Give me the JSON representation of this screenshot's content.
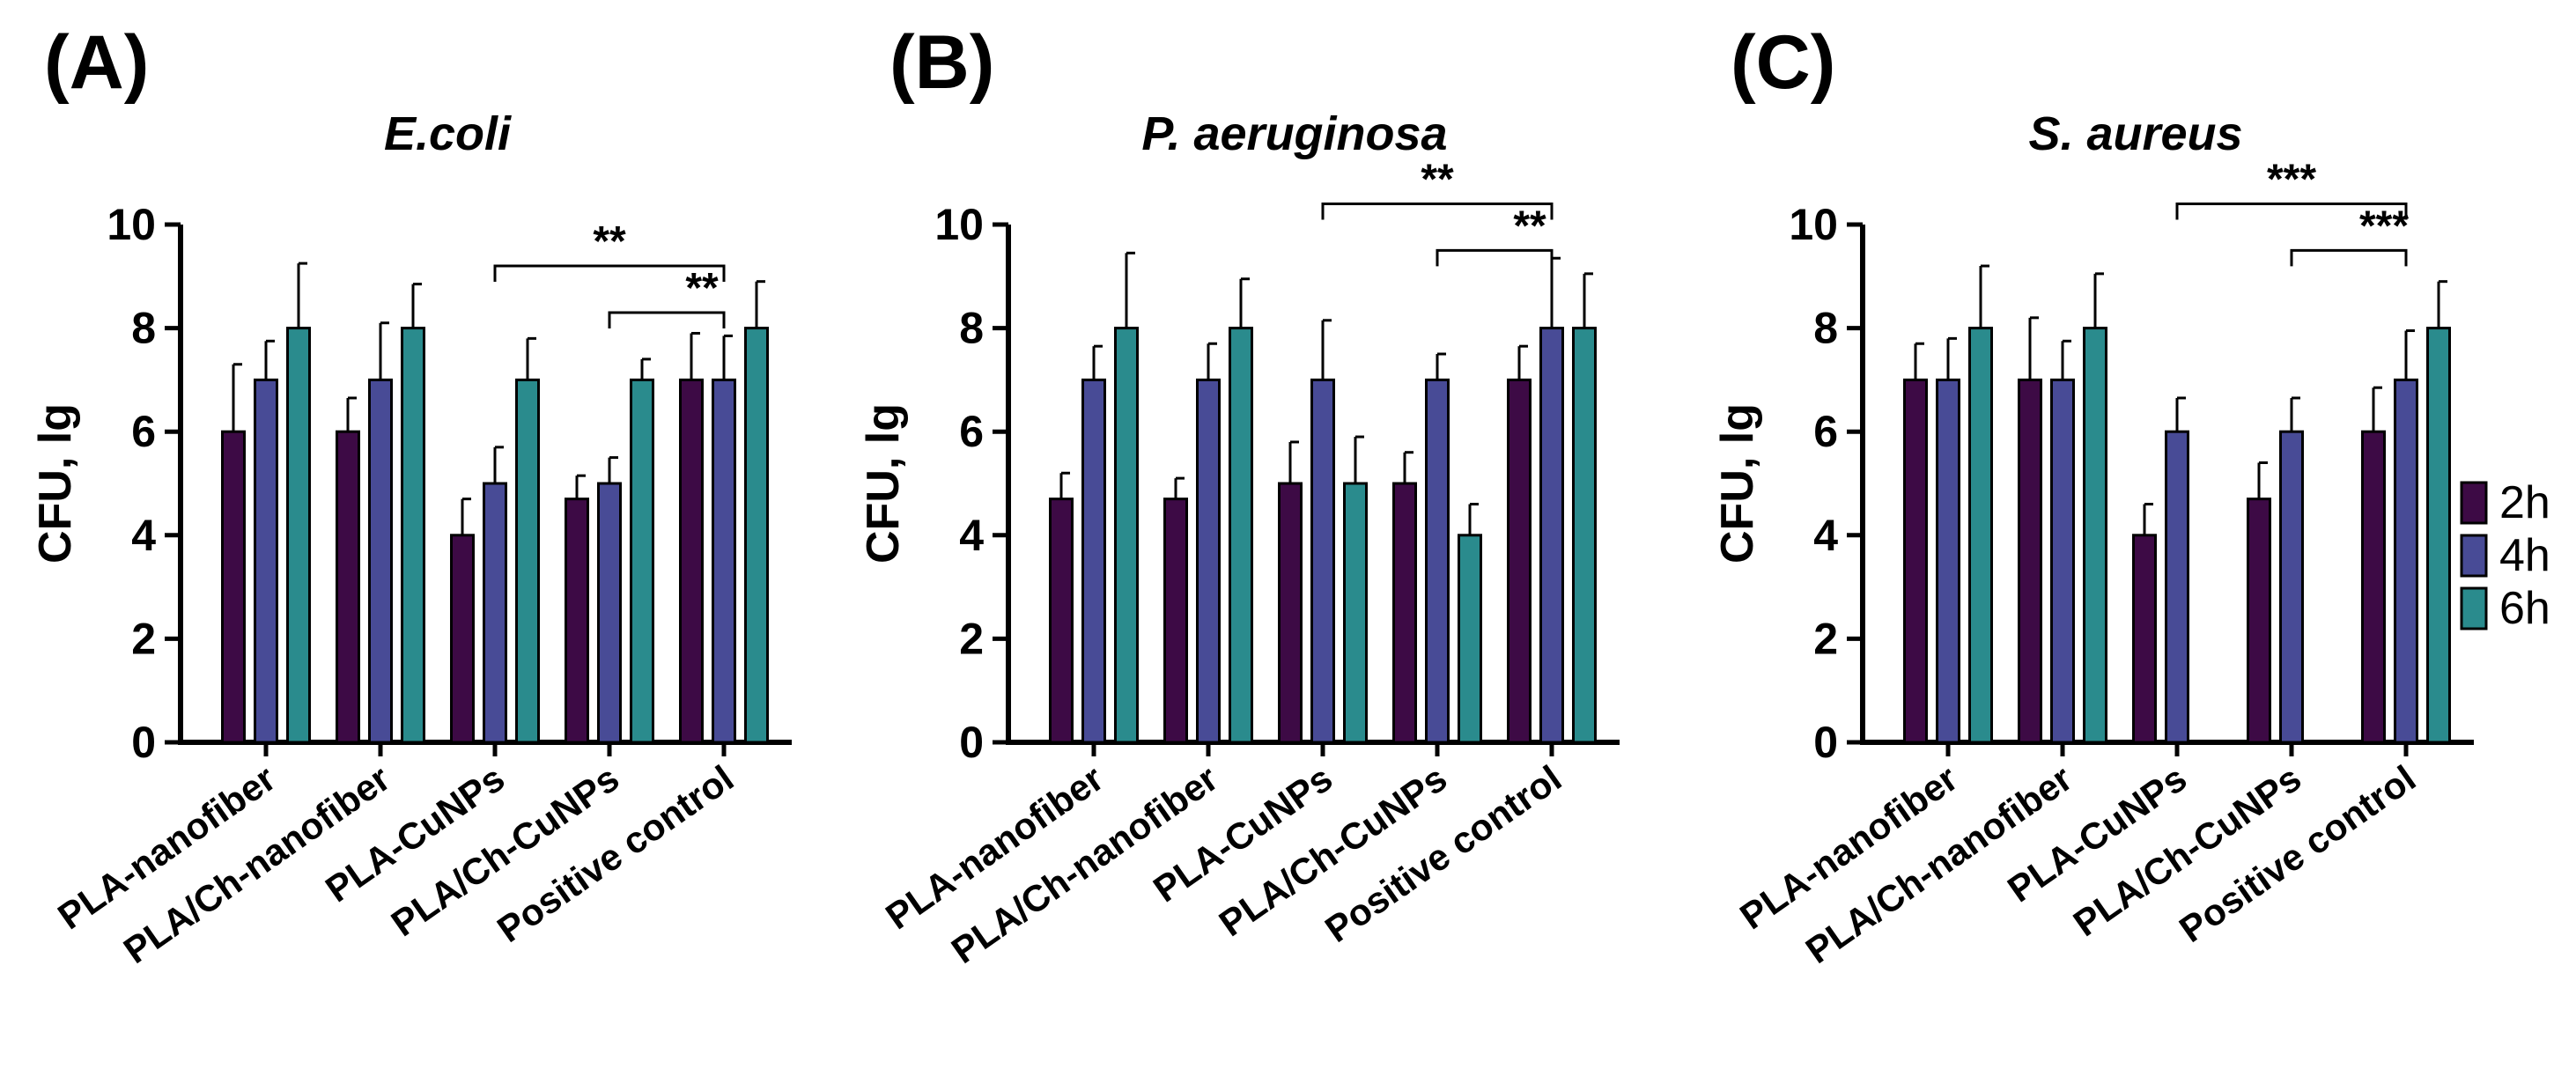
{
  "chart_data": [
    {
      "type": "bar",
      "panel": "(A)",
      "title": "E.coli",
      "ylabel": "CFU, lg",
      "xlabel": "",
      "ylim": [
        0,
        10
      ],
      "yticks": [
        0,
        2,
        4,
        6,
        8,
        10
      ],
      "categories": [
        "PLA-nanofiber",
        "PLA/Ch-nanofiber",
        "PLA-CuNPs",
        "PLA/Ch-CuNPs",
        "Positive control"
      ],
      "series": [
        {
          "name": "2h",
          "values": [
            6,
            6,
            4,
            4.7,
            7
          ],
          "errors": [
            1.3,
            0.65,
            0.7,
            0.45,
            0.9
          ]
        },
        {
          "name": "4h",
          "values": [
            7,
            7,
            5,
            5,
            7
          ],
          "errors": [
            0.75,
            1.1,
            0.7,
            0.5,
            0.85
          ]
        },
        {
          "name": "6h",
          "values": [
            8,
            8,
            7,
            7,
            8
          ],
          "errors": [
            1.25,
            0.85,
            0.8,
            0.4,
            0.9
          ]
        }
      ],
      "significance": [
        {
          "label": "**",
          "from": 2,
          "to": 4,
          "level": 9.2
        },
        {
          "label": "**",
          "from": 3,
          "to": 4,
          "level": 8.3
        }
      ]
    },
    {
      "type": "bar",
      "panel": "(B)",
      "title": "P. aeruginosa",
      "ylabel": "CFU, lg",
      "xlabel": "",
      "ylim": [
        0,
        10
      ],
      "yticks": [
        0,
        2,
        4,
        6,
        8,
        10
      ],
      "categories": [
        "PLA-nanofiber",
        "PLA/Ch-nanofiber",
        "PLA-CuNPs",
        "PLA/Ch-CuNPs",
        "Positive control"
      ],
      "series": [
        {
          "name": "2h",
          "values": [
            4.7,
            4.7,
            5,
            5,
            7
          ],
          "errors": [
            0.5,
            0.4,
            0.8,
            0.6,
            0.65
          ]
        },
        {
          "name": "4h",
          "values": [
            7,
            7,
            7,
            7,
            8
          ],
          "errors": [
            0.65,
            0.7,
            1.15,
            0.5,
            1.35
          ]
        },
        {
          "name": "6h",
          "values": [
            8,
            8,
            5,
            4,
            8
          ],
          "errors": [
            1.45,
            0.95,
            0.9,
            0.6,
            1.05
          ]
        }
      ],
      "significance": [
        {
          "label": "**",
          "from": 2,
          "to": 4,
          "level": 10.4
        },
        {
          "label": "**",
          "from": 3,
          "to": 4,
          "level": 9.5
        }
      ]
    },
    {
      "type": "bar",
      "panel": "(C)",
      "title": "S. aureus",
      "ylabel": "CFU, lg",
      "xlabel": "",
      "ylim": [
        0,
        10
      ],
      "yticks": [
        0,
        2,
        4,
        6,
        8,
        10
      ],
      "categories": [
        "PLA-nanofiber",
        "PLA/Ch-nanofiber",
        "PLA-CuNPs",
        "PLA/Ch-CuNPs",
        "Positive control"
      ],
      "series": [
        {
          "name": "2h",
          "values": [
            7,
            7,
            4,
            4.7,
            6
          ],
          "errors": [
            0.7,
            1.2,
            0.6,
            0.7,
            0.85
          ]
        },
        {
          "name": "4h",
          "values": [
            7,
            7,
            6,
            6,
            7
          ],
          "errors": [
            0.8,
            0.75,
            0.65,
            0.65,
            0.95
          ]
        },
        {
          "name": "6h",
          "values": [
            8,
            8,
            null,
            null,
            8
          ],
          "errors": [
            1.2,
            1.05,
            null,
            null,
            0.9
          ]
        }
      ],
      "significance": [
        {
          "label": "***",
          "from": 2,
          "to": 4,
          "level": 10.4
        },
        {
          "label": "***",
          "from": 3,
          "to": 4,
          "level": 9.5
        }
      ]
    }
  ],
  "legend": {
    "items": [
      {
        "label": "2h",
        "color": "#3d0a45"
      },
      {
        "label": "4h",
        "color": "#484b96"
      },
      {
        "label": "6h",
        "color": "#2a8b8d"
      }
    ]
  }
}
